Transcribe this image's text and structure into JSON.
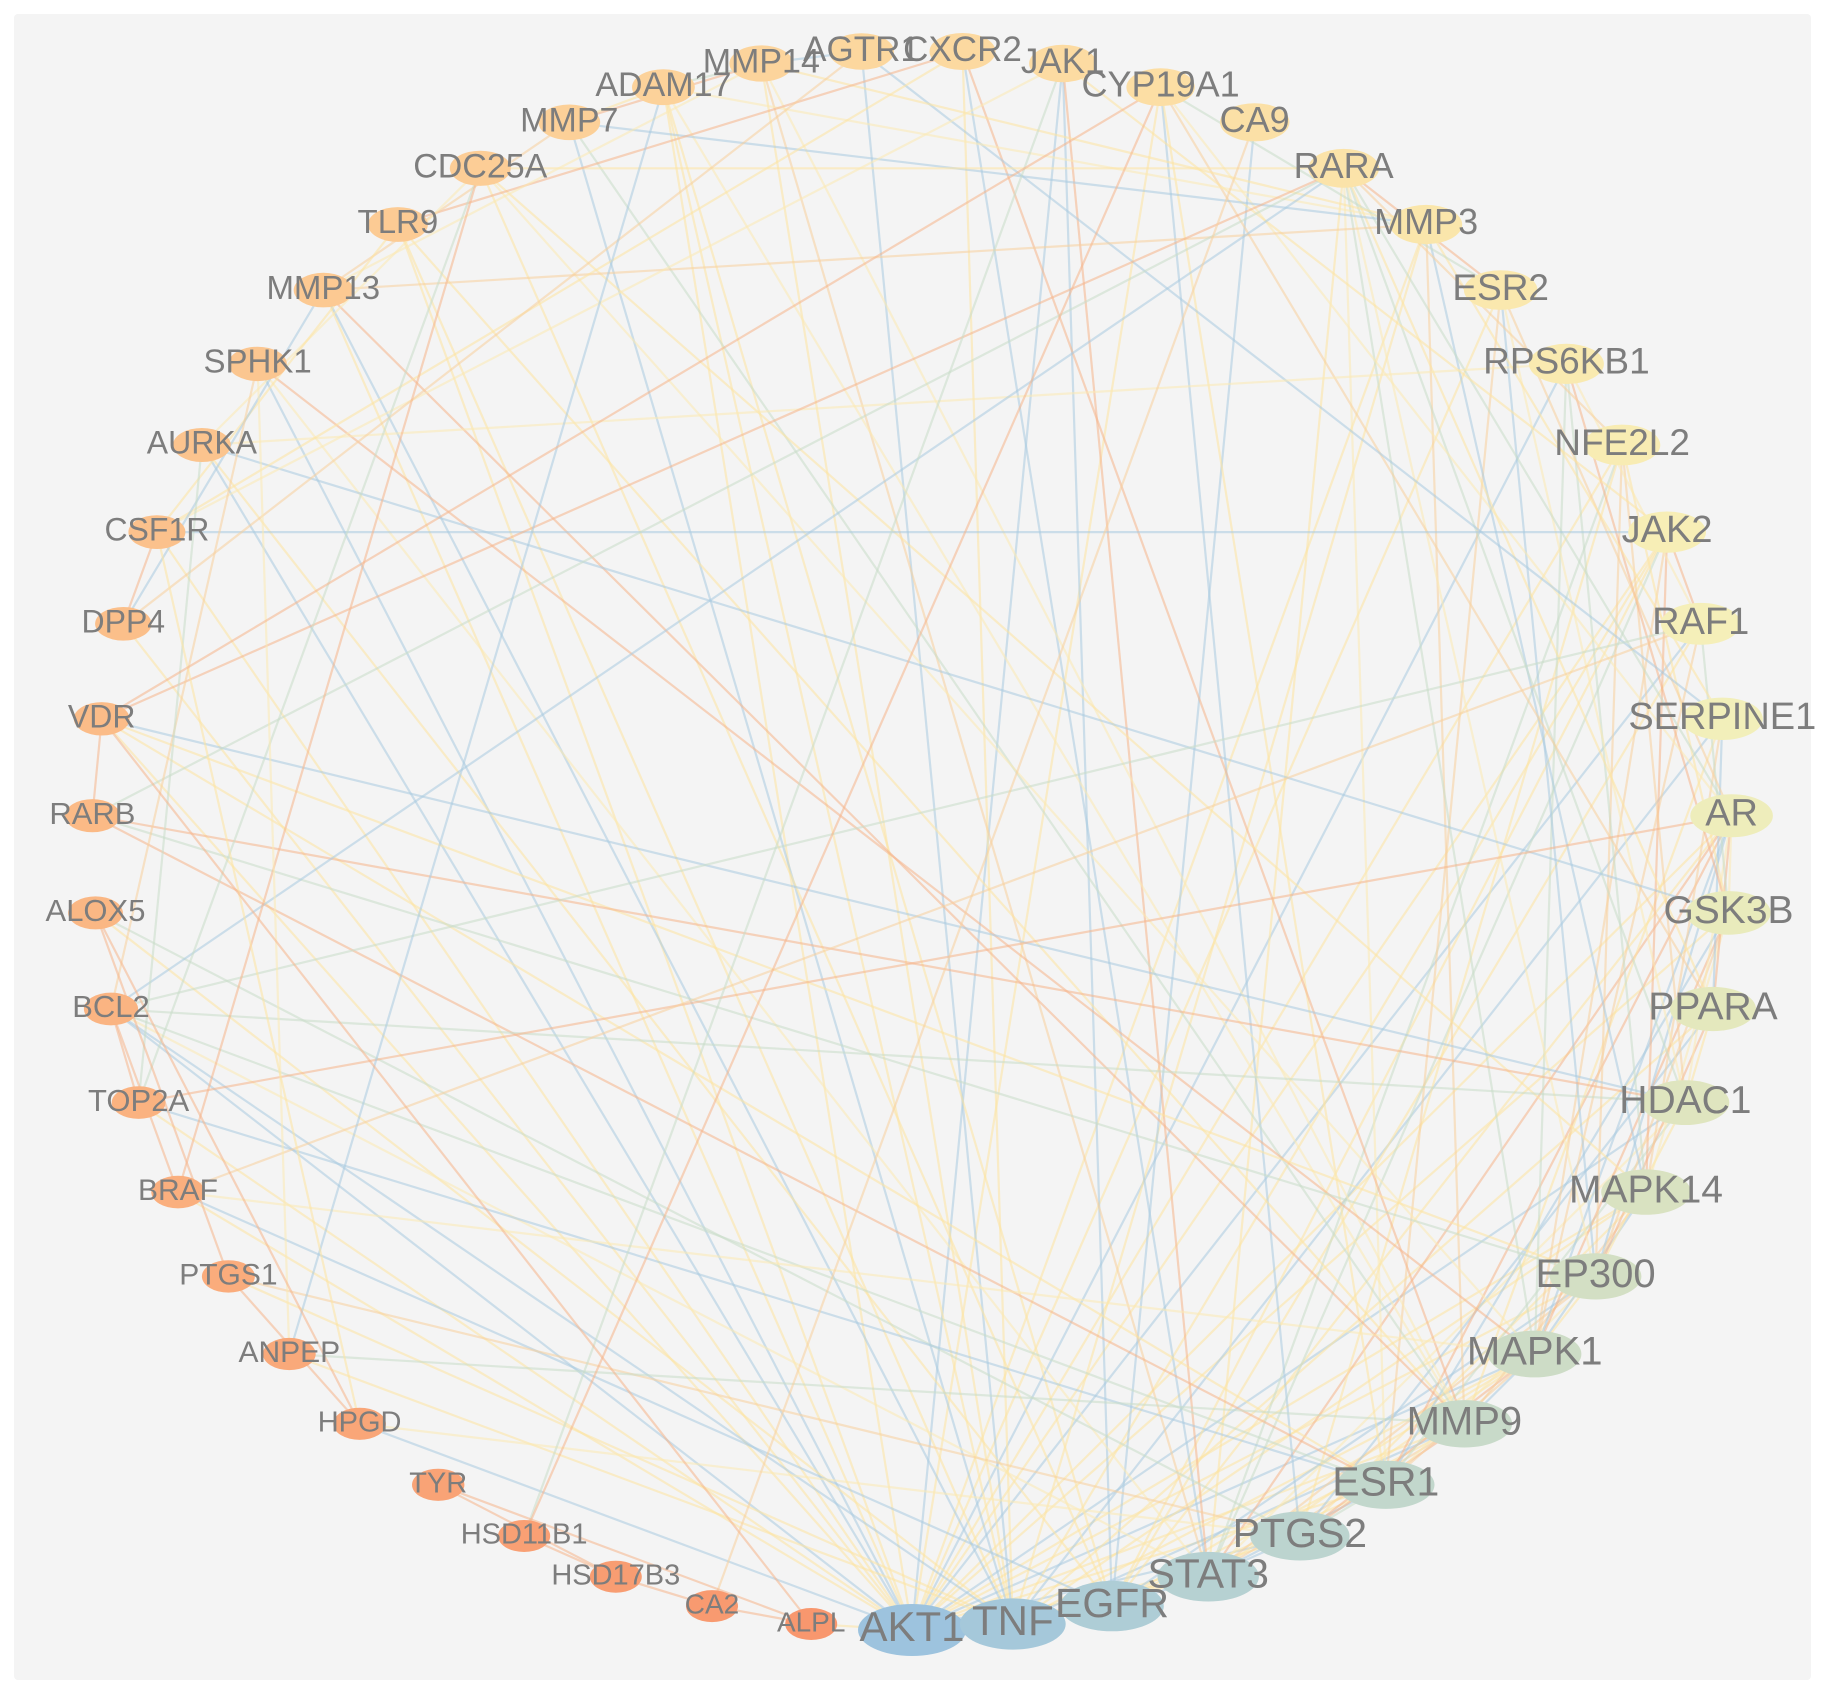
{
  "diagram": {
    "type": "circular-network",
    "node_order": [
      "AKT1",
      "TNF",
      "EGFR",
      "STAT3",
      "PTGS2",
      "ESR1",
      "MMP9",
      "MAPK1",
      "EP300",
      "MAPK14",
      "HDAC1",
      "PPARA",
      "GSK3B",
      "AR",
      "SERPINE1",
      "RAF1",
      "JAK2",
      "NFE2L2",
      "RPS6KB1",
      "ESR2",
      "MMP3",
      "RARA",
      "CA9",
      "CYP19A1",
      "JAK1",
      "CXCR2",
      "AGTR1",
      "MMP14",
      "ADAM17",
      "MMP7",
      "CDC25A",
      "TLR9",
      "MMP13",
      "SPHK1",
      "AURKA",
      "CSF1R",
      "DPP4",
      "VDR",
      "RARB",
      "ALOX5",
      "BCL2",
      "TOP2A",
      "BRAF",
      "PTGS1",
      "ANPEP",
      "HPGD",
      "TYR",
      "HSD11B1",
      "HSD17B3",
      "CA2",
      "ALPL"
    ],
    "nodes": [
      {
        "id": "AKT1",
        "label": "AKT1",
        "color": "#9dc3de"
      },
      {
        "id": "TNF",
        "label": "TNF",
        "color": "#a5c8da"
      },
      {
        "id": "EGFR",
        "label": "EGFR",
        "color": "#aecdd6"
      },
      {
        "id": "STAT3",
        "label": "STAT3",
        "color": "#b6d1d2"
      },
      {
        "id": "PTGS2",
        "label": "PTGS2",
        "color": "#bcd4cf"
      },
      {
        "id": "ESR1",
        "label": "ESR1",
        "color": "#c2d7cc"
      },
      {
        "id": "MMP9",
        "label": "MMP9",
        "color": "#c8dac9"
      },
      {
        "id": "MAPK1",
        "label": "MAPK1",
        "color": "#cddcc6"
      },
      {
        "id": "EP300",
        "label": "EP300",
        "color": "#d3dfc4"
      },
      {
        "id": "MAPK14",
        "label": "MAPK14",
        "color": "#d9e2c1"
      },
      {
        "id": "HDAC1",
        "label": "HDAC1",
        "color": "#dfe5bf"
      },
      {
        "id": "PPARA",
        "label": "PPARA",
        "color": "#e4e8bd"
      },
      {
        "id": "GSK3B",
        "label": "GSK3B",
        "color": "#e9ebbc"
      },
      {
        "id": "AR",
        "label": "AR",
        "color": "#eeedbb"
      },
      {
        "id": "SERPINE1",
        "label": "SERPINE1",
        "color": "#f2efba"
      },
      {
        "id": "RAF1",
        "label": "RAF1",
        "color": "#f5efb9"
      },
      {
        "id": "JAK2",
        "label": "JAK2",
        "color": "#f7eeb6"
      },
      {
        "id": "NFE2L2",
        "label": "NFE2L2",
        "color": "#f8ecb3"
      },
      {
        "id": "RPS6KB1",
        "label": "RPS6KB1",
        "color": "#f9eab0"
      },
      {
        "id": "ESR2",
        "label": "ESR2",
        "color": "#fae8ae"
      },
      {
        "id": "MMP3",
        "label": "MMP3",
        "color": "#fae6ab"
      },
      {
        "id": "RARA",
        "label": "RARA",
        "color": "#fbe3a9"
      },
      {
        "id": "CA9",
        "label": "CA9",
        "color": "#fbe0a6"
      },
      {
        "id": "CYP19A1",
        "label": "CYP19A1",
        "color": "#fcdea4"
      },
      {
        "id": "JAK1",
        "label": "JAK1",
        "color": "#fcdba2"
      },
      {
        "id": "CXCR2",
        "label": "CXCR2",
        "color": "#fcd9a0"
      },
      {
        "id": "AGTR1",
        "label": "AGTR1",
        "color": "#fcd79e"
      },
      {
        "id": "MMP14",
        "label": "MMP14",
        "color": "#fcd49c"
      },
      {
        "id": "ADAM17",
        "label": "ADAM17",
        "color": "#fcd29a"
      },
      {
        "id": "MMP7",
        "label": "MMP7",
        "color": "#fcd098"
      },
      {
        "id": "CDC25A",
        "label": "CDC25A",
        "color": "#fccd96"
      },
      {
        "id": "TLR9",
        "label": "TLR9",
        "color": "#fccb94"
      },
      {
        "id": "MMP13",
        "label": "MMP13",
        "color": "#fcc992"
      },
      {
        "id": "SPHK1",
        "label": "SPHK1",
        "color": "#fbc690"
      },
      {
        "id": "AURKA",
        "label": "AURKA",
        "color": "#fbc48e"
      },
      {
        "id": "CSF1R",
        "label": "CSF1R",
        "color": "#fbc18c"
      },
      {
        "id": "DPP4",
        "label": "DPP4",
        "color": "#fbbf8a"
      },
      {
        "id": "VDR",
        "label": "VDR",
        "color": "#fbbc88"
      },
      {
        "id": "RARB",
        "label": "RARB",
        "color": "#fbba86"
      },
      {
        "id": "ALOX5",
        "label": "ALOX5",
        "color": "#fab784"
      },
      {
        "id": "BCL2",
        "label": "BCL2",
        "color": "#fab482"
      },
      {
        "id": "TOP2A",
        "label": "TOP2A",
        "color": "#fab280"
      },
      {
        "id": "BRAF",
        "label": "BRAF",
        "color": "#faaf7e"
      },
      {
        "id": "PTGS1",
        "label": "PTGS1",
        "color": "#faac7c"
      },
      {
        "id": "ANPEP",
        "label": "ANPEP",
        "color": "#f9a97a"
      },
      {
        "id": "HPGD",
        "label": "HPGD",
        "color": "#f9a678"
      },
      {
        "id": "TYR",
        "label": "TYR",
        "color": "#f9a376"
      },
      {
        "id": "HSD11B1",
        "label": "HSD11B1",
        "color": "#f9a074"
      },
      {
        "id": "HSD17B3",
        "label": "HSD17B3",
        "color": "#f89d72"
      },
      {
        "id": "CA2",
        "label": "CA2",
        "color": "#f89a70"
      },
      {
        "id": "ALPL",
        "label": "ALPL",
        "color": "#f8976e"
      }
    ],
    "edges": [
      [
        "AKT1",
        "TNF"
      ],
      [
        "AKT1",
        "EGFR"
      ],
      [
        "AKT1",
        "STAT3"
      ],
      [
        "AKT1",
        "PTGS2"
      ],
      [
        "AKT1",
        "ESR1"
      ],
      [
        "AKT1",
        "MMP9"
      ],
      [
        "AKT1",
        "MAPK1"
      ],
      [
        "AKT1",
        "EP300"
      ],
      [
        "AKT1",
        "MAPK14"
      ],
      [
        "AKT1",
        "HDAC1"
      ],
      [
        "AKT1",
        "GSK3B"
      ],
      [
        "AKT1",
        "AR"
      ],
      [
        "AKT1",
        "RAF1"
      ],
      [
        "AKT1",
        "JAK2"
      ],
      [
        "AKT1",
        "NFE2L2"
      ],
      [
        "AKT1",
        "RPS6KB1"
      ],
      [
        "AKT1",
        "ESR2"
      ],
      [
        "AKT1",
        "MMP3"
      ],
      [
        "AKT1",
        "JAK1"
      ],
      [
        "AKT1",
        "CYP19A1"
      ],
      [
        "AKT1",
        "ADAM17"
      ],
      [
        "AKT1",
        "SPHK1"
      ],
      [
        "AKT1",
        "MMP13"
      ],
      [
        "AKT1",
        "TLR9"
      ],
      [
        "AKT1",
        "BCL2"
      ],
      [
        "AKT1",
        "BRAF"
      ],
      [
        "AKT1",
        "VDR"
      ],
      [
        "AKT1",
        "AURKA"
      ],
      [
        "AKT1",
        "CSF1R"
      ],
      [
        "AKT1",
        "DPP4"
      ],
      [
        "AKT1",
        "HPGD"
      ],
      [
        "AKT1",
        "ALPL"
      ],
      [
        "AKT1",
        "TOP2A"
      ],
      [
        "TNF",
        "EGFR"
      ],
      [
        "TNF",
        "STAT3"
      ],
      [
        "TNF",
        "PTGS2"
      ],
      [
        "TNF",
        "MMP9"
      ],
      [
        "TNF",
        "MAPK1"
      ],
      [
        "TNF",
        "MAPK14"
      ],
      [
        "TNF",
        "SERPINE1"
      ],
      [
        "TNF",
        "MMP3"
      ],
      [
        "TNF",
        "MMP14"
      ],
      [
        "TNF",
        "MMP7"
      ],
      [
        "TNF",
        "ADAM17"
      ],
      [
        "TNF",
        "TLR9"
      ],
      [
        "TNF",
        "MMP13"
      ],
      [
        "TNF",
        "ALOX5"
      ],
      [
        "TNF",
        "PTGS1"
      ],
      [
        "TNF",
        "BCL2"
      ],
      [
        "TNF",
        "ANPEP"
      ],
      [
        "TNF",
        "CXCR2"
      ],
      [
        "TNF",
        "AGTR1"
      ],
      [
        "TNF",
        "JAK2"
      ],
      [
        "TNF",
        "PPARA"
      ],
      [
        "EGFR",
        "STAT3"
      ],
      [
        "EGFR",
        "ESR1"
      ],
      [
        "EGFR",
        "MAPK1"
      ],
      [
        "EGFR",
        "EP300"
      ],
      [
        "EGFR",
        "RAF1"
      ],
      [
        "EGFR",
        "JAK2"
      ],
      [
        "EGFR",
        "JAK1"
      ],
      [
        "EGFR",
        "AR"
      ],
      [
        "EGFR",
        "MMP9"
      ],
      [
        "EGFR",
        "BRAF"
      ],
      [
        "EGFR",
        "ADAM17"
      ],
      [
        "EGFR",
        "CDC25A"
      ],
      [
        "EGFR",
        "CA9"
      ],
      [
        "EGFR",
        "AURKA"
      ],
      [
        "STAT3",
        "ESR1"
      ],
      [
        "STAT3",
        "EP300"
      ],
      [
        "STAT3",
        "HDAC1"
      ],
      [
        "STAT3",
        "JAK2"
      ],
      [
        "STAT3",
        "JAK1"
      ],
      [
        "STAT3",
        "MAPK1"
      ],
      [
        "STAT3",
        "PTGS2"
      ],
      [
        "STAT3",
        "MMP9"
      ],
      [
        "STAT3",
        "BCL2"
      ],
      [
        "STAT3",
        "NFE2L2"
      ],
      [
        "STAT3",
        "AR"
      ],
      [
        "STAT3",
        "RARA"
      ],
      [
        "STAT3",
        "CXCR2"
      ],
      [
        "STAT3",
        "MMP14"
      ],
      [
        "STAT3",
        "SPHK1"
      ],
      [
        "PTGS2",
        "ESR1"
      ],
      [
        "PTGS2",
        "MAPK1"
      ],
      [
        "PTGS2",
        "MAPK14"
      ],
      [
        "PTGS2",
        "PPARA"
      ],
      [
        "PTGS2",
        "PTGS1"
      ],
      [
        "PTGS2",
        "HPGD"
      ],
      [
        "PTGS2",
        "ALOX5"
      ],
      [
        "PTGS2",
        "MMP9"
      ],
      [
        "PTGS2",
        "NFE2L2"
      ],
      [
        "PTGS2",
        "CYP19A1"
      ],
      [
        "ESR1",
        "ESR2"
      ],
      [
        "ESR1",
        "EP300"
      ],
      [
        "ESR1",
        "HDAC1"
      ],
      [
        "ESR1",
        "AR"
      ],
      [
        "ESR1",
        "CYP19A1"
      ],
      [
        "ESR1",
        "GSK3B"
      ],
      [
        "ESR1",
        "MAPK1"
      ],
      [
        "ESR1",
        "RARA"
      ],
      [
        "ESR1",
        "BCL2"
      ],
      [
        "ESR1",
        "RARB"
      ],
      [
        "ESR1",
        "VDR"
      ],
      [
        "ESR1",
        "TOP2A"
      ],
      [
        "MMP9",
        "MMP3"
      ],
      [
        "MMP9",
        "MMP14"
      ],
      [
        "MMP9",
        "MMP7"
      ],
      [
        "MMP9",
        "MMP13"
      ],
      [
        "MMP9",
        "SERPINE1"
      ],
      [
        "MMP9",
        "MAPK1"
      ],
      [
        "MMP9",
        "MAPK14"
      ],
      [
        "MMP9",
        "ADAM17"
      ],
      [
        "MMP9",
        "ANPEP"
      ],
      [
        "MMP9",
        "CXCR2"
      ],
      [
        "MMP9",
        "TLR9"
      ],
      [
        "MAPK1",
        "MAPK14"
      ],
      [
        "MAPK1",
        "RAF1"
      ],
      [
        "MAPK1",
        "BRAF"
      ],
      [
        "MAPK1",
        "RPS6KB1"
      ],
      [
        "MAPK1",
        "GSK3B"
      ],
      [
        "MAPK1",
        "EP300"
      ],
      [
        "MAPK1",
        "AR"
      ],
      [
        "MAPK1",
        "JAK2"
      ],
      [
        "MAPK1",
        "CDC25A"
      ],
      [
        "MAPK1",
        "RARA"
      ],
      [
        "MAPK1",
        "SPHK1"
      ],
      [
        "EP300",
        "HDAC1"
      ],
      [
        "EP300",
        "AR"
      ],
      [
        "EP300",
        "NFE2L2"
      ],
      [
        "EP300",
        "RARA"
      ],
      [
        "EP300",
        "RARB"
      ],
      [
        "EP300",
        "PPARA"
      ],
      [
        "EP300",
        "VDR"
      ],
      [
        "EP300",
        "ESR2"
      ],
      [
        "EP300",
        "GSK3B"
      ],
      [
        "MAPK14",
        "GSK3B"
      ],
      [
        "MAPK14",
        "RPS6KB1"
      ],
      [
        "MAPK14",
        "JAK2"
      ],
      [
        "MAPK14",
        "CDC25A"
      ],
      [
        "MAPK14",
        "MMP3"
      ],
      [
        "MAPK14",
        "SERPINE1"
      ],
      [
        "HDAC1",
        "AR"
      ],
      [
        "HDAC1",
        "RARA"
      ],
      [
        "HDAC1",
        "RARB"
      ],
      [
        "HDAC1",
        "PPARA"
      ],
      [
        "HDAC1",
        "VDR"
      ],
      [
        "HDAC1",
        "NFE2L2"
      ],
      [
        "HDAC1",
        "ESR2"
      ],
      [
        "HDAC1",
        "BCL2"
      ],
      [
        "PPARA",
        "AR"
      ],
      [
        "PPARA",
        "RARA"
      ],
      [
        "PPARA",
        "SERPINE1"
      ],
      [
        "PPARA",
        "CYP19A1"
      ],
      [
        "GSK3B",
        "AR"
      ],
      [
        "GSK3B",
        "RAF1"
      ],
      [
        "GSK3B",
        "RPS6KB1"
      ],
      [
        "GSK3B",
        "NFE2L2"
      ],
      [
        "GSK3B",
        "AURKA"
      ],
      [
        "AR",
        "ESR2"
      ],
      [
        "AR",
        "CYP19A1"
      ],
      [
        "AR",
        "RARA"
      ],
      [
        "AR",
        "TOP2A"
      ],
      [
        "SERPINE1",
        "MMP3"
      ],
      [
        "SERPINE1",
        "AGTR1"
      ],
      [
        "RAF1",
        "BRAF"
      ],
      [
        "RAF1",
        "RPS6KB1"
      ],
      [
        "RAF1",
        "BCL2"
      ],
      [
        "RAF1",
        "JAK2"
      ],
      [
        "JAK2",
        "JAK1"
      ],
      [
        "JAK2",
        "CSF1R"
      ],
      [
        "NFE2L2",
        "RARA"
      ],
      [
        "RPS6KB1",
        "AURKA"
      ],
      [
        "ESR2",
        "CYP19A1"
      ],
      [
        "ESR2",
        "RARA"
      ],
      [
        "MMP3",
        "MMP14"
      ],
      [
        "MMP3",
        "MMP7"
      ],
      [
        "MMP3",
        "MMP13"
      ],
      [
        "MMP3",
        "ADAM17"
      ],
      [
        "RARA",
        "RARB"
      ],
      [
        "RARA",
        "VDR"
      ],
      [
        "RARA",
        "CDC25A"
      ],
      [
        "RARA",
        "BCL2"
      ],
      [
        "CA9",
        "CA2"
      ],
      [
        "JAK1",
        "CSF1R"
      ],
      [
        "JAK1",
        "HSD11B1"
      ],
      [
        "CXCR2",
        "TLR9"
      ],
      [
        "CXCR2",
        "CSF1R"
      ],
      [
        "AGTR1",
        "MMP14"
      ],
      [
        "AGTR1",
        "DPP4"
      ],
      [
        "MMP14",
        "MMP13"
      ],
      [
        "MMP14",
        "ADAM17"
      ],
      [
        "MMP14",
        "MMP7"
      ],
      [
        "ADAM17",
        "MMP7"
      ],
      [
        "ADAM17",
        "ANPEP"
      ],
      [
        "MMP7",
        "MMP13"
      ],
      [
        "CDC25A",
        "AURKA"
      ],
      [
        "CDC25A",
        "TOP2A"
      ],
      [
        "CDC25A",
        "BRAF"
      ],
      [
        "TLR9",
        "CSF1R"
      ],
      [
        "MMP13",
        "DPP4"
      ],
      [
        "SPHK1",
        "BCL2"
      ],
      [
        "SPHK1",
        "ANPEP"
      ],
      [
        "AURKA",
        "TOP2A"
      ],
      [
        "CSF1R",
        "DPP4"
      ],
      [
        "CSF1R",
        "HPGD"
      ],
      [
        "VDR",
        "RARB"
      ],
      [
        "VDR",
        "CYP19A1"
      ],
      [
        "VDR",
        "ALPL"
      ],
      [
        "ALOX5",
        "PTGS1"
      ],
      [
        "ALOX5",
        "HPGD"
      ],
      [
        "BCL2",
        "BRAF"
      ],
      [
        "BCL2",
        "TOP2A"
      ],
      [
        "PTGS1",
        "HPGD"
      ],
      [
        "TYR",
        "HSD17B3"
      ],
      [
        "TYR",
        "ALPL"
      ],
      [
        "HSD11B1",
        "HSD17B3"
      ],
      [
        "HSD11B1",
        "CYP19A1"
      ],
      [
        "HSD17B3",
        "CA2"
      ],
      [
        "CA2",
        "ALPL"
      ]
    ]
  }
}
